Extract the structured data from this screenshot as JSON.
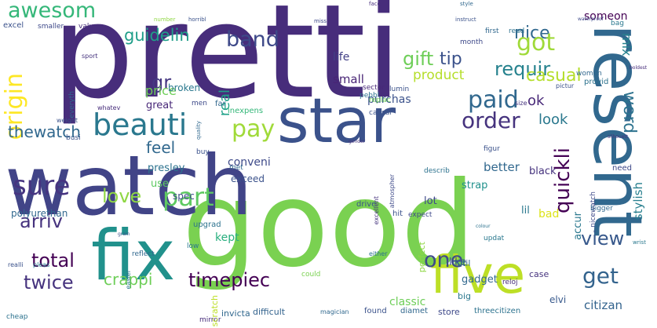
{
  "words": [
    {
      "text": "pretti",
      "color": "#472d7b"
    },
    {
      "text": "good",
      "color": "#7ad151"
    },
    {
      "text": "watch",
      "color": "#414487"
    },
    {
      "text": "resent",
      "color": "#31688e"
    },
    {
      "text": "star",
      "color": "#3b528b"
    },
    {
      "text": "fix",
      "color": "#21918c"
    },
    {
      "text": "five",
      "color": "#bddf26"
    },
    {
      "text": "beauti",
      "color": "#2a788e"
    },
    {
      "text": "awesom",
      "color": "#35b779"
    },
    {
      "text": "band",
      "color": "#3e4989"
    },
    {
      "text": "guidelin",
      "color": "#1f9e89"
    },
    {
      "text": "nice",
      "color": "#31688e"
    },
    {
      "text": "got",
      "color": "#a0da39"
    },
    {
      "text": "gift",
      "color": "#6ece58"
    },
    {
      "text": "gr",
      "color": "#453781"
    },
    {
      "text": "requir",
      "color": "#26828e"
    },
    {
      "text": "tip",
      "color": "#3b528b"
    },
    {
      "text": "casual",
      "color": "#b5de2b"
    },
    {
      "text": "pay",
      "color": "#a0da39"
    },
    {
      "text": "paid",
      "color": "#31688e"
    },
    {
      "text": "origin",
      "color": "#fde725"
    },
    {
      "text": "order",
      "color": "#46337e"
    },
    {
      "text": "word",
      "color": "#2c728e"
    },
    {
      "text": "thewatch",
      "color": "#31688e"
    },
    {
      "text": "look",
      "color": "#2a788e"
    },
    {
      "text": "product",
      "color": "#b5de2b"
    },
    {
      "text": "price",
      "color": "#6ece58"
    },
    {
      "text": "mix",
      "color": "#26828e"
    },
    {
      "text": "feel",
      "color": "#31688e"
    },
    {
      "text": "quickli",
      "color": "#440154"
    },
    {
      "text": "ok",
      "color": "#482878"
    },
    {
      "text": "sure",
      "color": "#463480"
    },
    {
      "text": "part",
      "color": "#5ec962"
    },
    {
      "text": "love",
      "color": "#8fd744"
    },
    {
      "text": "one",
      "color": "#3e4a89"
    },
    {
      "text": "arriv",
      "color": "#46337e"
    },
    {
      "text": "view",
      "color": "#38598c"
    },
    {
      "text": "total",
      "color": "#440154"
    },
    {
      "text": "get",
      "color": "#33638d"
    },
    {
      "text": "twice",
      "color": "#46337e"
    },
    {
      "text": "crappi",
      "color": "#6ece58"
    },
    {
      "text": "timepiec",
      "color": "#440154"
    },
    {
      "text": "citizan",
      "color": "#33638d"
    },
    {
      "text": "someon",
      "color": "#440154"
    },
    {
      "text": "stylish",
      "color": "#277f8e"
    },
    {
      "text": "accur",
      "color": "#2a788e"
    },
    {
      "text": "better",
      "color": "#31688e"
    },
    {
      "text": "conveni",
      "color": "#3e4a89"
    },
    {
      "text": "small",
      "color": "#482475"
    },
    {
      "text": "life",
      "color": "#424086"
    },
    {
      "text": "real",
      "color": "#1fa188"
    },
    {
      "text": "purchas",
      "color": "#3b528b"
    },
    {
      "text": "kept",
      "color": "#29af7f"
    },
    {
      "text": "lil",
      "color": "#2a788e"
    },
    {
      "text": "black",
      "color": "#46337e"
    },
    {
      "text": "gadget",
      "color": "#31688e"
    },
    {
      "text": "elvi",
      "color": "#38598c"
    },
    {
      "text": "polyurethan",
      "color": "#31688e"
    },
    {
      "text": "presley",
      "color": "#2c728e"
    },
    {
      "text": "spec",
      "color": "#3e4a89"
    },
    {
      "text": "exceed",
      "color": "#3b528b"
    },
    {
      "text": "strap",
      "color": "#21918c"
    },
    {
      "text": "bad",
      "color": "#dce319"
    },
    {
      "text": "like",
      "color": "#3b528b"
    },
    {
      "text": "classic",
      "color": "#6ece58"
    },
    {
      "text": "lot",
      "color": "#3e4989"
    },
    {
      "text": "broken",
      "color": "#2a788e"
    },
    {
      "text": "great",
      "color": "#482878"
    },
    {
      "text": "men",
      "color": "#3e4a89"
    },
    {
      "text": "cheap",
      "color": "#2c728e"
    },
    {
      "text": "mirror",
      "color": "#472d7b"
    },
    {
      "text": "invicta",
      "color": "#31688e"
    },
    {
      "text": "difficult",
      "color": "#33638d"
    },
    {
      "text": "found",
      "color": "#3b528b"
    },
    {
      "text": "diamet",
      "color": "#31688e"
    },
    {
      "text": "store",
      "color": "#3e4989"
    },
    {
      "text": "threecitizen",
      "color": "#2c728e"
    },
    {
      "text": "big",
      "color": "#2a788e"
    },
    {
      "text": "util",
      "color": "#31688e"
    },
    {
      "text": "case",
      "color": "#46337e"
    },
    {
      "text": "drive",
      "color": "#3b528b"
    },
    {
      "text": "hit",
      "color": "#3b528b"
    },
    {
      "text": "need",
      "color": "#3e4989"
    },
    {
      "text": "upgrad",
      "color": "#2c728e"
    },
    {
      "text": "excel",
      "color": "#3b528b"
    },
    {
      "text": "smaller",
      "color": "#3e4989"
    },
    {
      "text": "valu",
      "color": "#472d7b"
    },
    {
      "text": "far",
      "color": "#31688e"
    },
    {
      "text": "busi",
      "color": "#3b528b"
    },
    {
      "text": "month",
      "color": "#3e4989"
    },
    {
      "text": "first",
      "color": "#31688e"
    },
    {
      "text": "read",
      "color": "#2c728e"
    },
    {
      "text": "woman",
      "color": "#31688e"
    },
    {
      "text": "provid",
      "color": "#2c728e"
    },
    {
      "text": "lumin",
      "color": "#3b528b"
    },
    {
      "text": "sector",
      "color": "#482878"
    },
    {
      "text": "pebbl",
      "color": "#2c728e"
    },
    {
      "text": "inexpens",
      "color": "#35b779"
    },
    {
      "text": "causal",
      "color": "#3b528b"
    },
    {
      "text": "replac",
      "color": "#6ece58"
    },
    {
      "text": "nicewatch",
      "color": "#3e4a89"
    },
    {
      "text": "bigger",
      "color": "#31688e"
    },
    {
      "text": "sport",
      "color": "#46337e"
    },
    {
      "text": "everyth",
      "color": "#31688e"
    },
    {
      "text": "weight",
      "color": "#3b528b"
    },
    {
      "text": "whatev",
      "color": "#472d7b"
    },
    {
      "text": "describ",
      "color": "#2c728e"
    },
    {
      "text": "buy",
      "color": "#3b528b"
    },
    {
      "text": "met",
      "color": "#31688e"
    },
    {
      "text": "use",
      "color": "#5ec962"
    },
    {
      "text": "atmospher",
      "color": "#3e4a89"
    },
    {
      "text": "excellent",
      "color": "#46337e"
    },
    {
      "text": "perfect",
      "color": "#8fd744"
    },
    {
      "text": "expect",
      "color": "#3e4989"
    },
    {
      "text": "updat",
      "color": "#2a788e"
    },
    {
      "text": "scratch",
      "color": "#bddf26"
    },
    {
      "text": "easier",
      "color": "#2a788e"
    },
    {
      "text": "reflect",
      "color": "#31688e"
    },
    {
      "text": "low",
      "color": "#2a788e"
    },
    {
      "text": "realli",
      "color": "#3b528b"
    },
    {
      "text": "pleas",
      "color": "#2a788e"
    },
    {
      "text": "either",
      "color": "#2c728e"
    },
    {
      "text": "could",
      "color": "#7ad151"
    },
    {
      "text": "magician",
      "color": "#31688e"
    },
    {
      "text": "reloj",
      "color": "#472d7b"
    },
    {
      "text": "figur",
      "color": "#3b528b"
    },
    {
      "text": "size",
      "color": "#46337e"
    },
    {
      "text": "pictur",
      "color": "#3b528b"
    },
    {
      "text": "face",
      "color": "#472d7b"
    },
    {
      "text": "style",
      "color": "#31688e"
    },
    {
      "text": "miss",
      "color": "#3e4989"
    },
    {
      "text": "horribl",
      "color": "#3b528b"
    },
    {
      "text": "number",
      "color": "#8fd744"
    },
    {
      "text": "instruct",
      "color": "#3b528b"
    },
    {
      "text": "bag",
      "color": "#2a788e"
    },
    {
      "text": "boldest",
      "color": "#472d7b"
    },
    {
      "text": "waterproof",
      "color": "#3e4989"
    },
    {
      "text": "wrist",
      "color": "#2a788e"
    },
    {
      "text": "gender",
      "color": "#46337e"
    },
    {
      "text": "quality",
      "color": "#31688e"
    },
    {
      "text": "grain",
      "color": "#3b528b"
    },
    {
      "text": "colour",
      "color": "#2c728e"
    },
    {
      "text": "silhouett",
      "color": "#46337e"
    }
  ]
}
